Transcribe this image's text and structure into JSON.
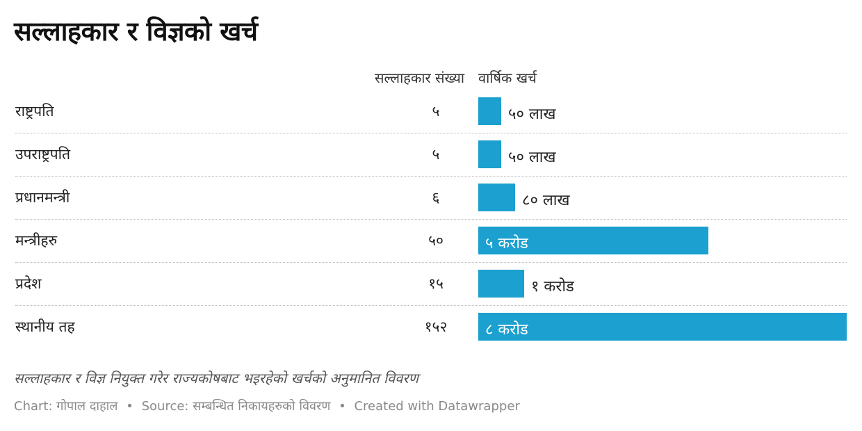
{
  "title": "सल्लाहकार र विज्ञको खर्च",
  "columns": {
    "count_header": "सल्लाहकार संख्या",
    "cost_header": "वार्षिक खर्च"
  },
  "chart_data": {
    "type": "bar",
    "title": "सल्लाहकार र विज्ञको खर्च",
    "categories": [
      "राष्ट्रपति",
      "उपराष्ट्रपति",
      "प्रधानमन्त्री",
      "मन्त्रीहरु",
      "प्रदेश",
      "स्थानीय तह"
    ],
    "advisor_counts": [
      "५",
      "५",
      "६",
      "५०",
      "१५",
      "१५२"
    ],
    "cost_labels": [
      "५० लाख",
      "५० लाख",
      "८० लाख",
      "५ करोड",
      "१ करोड",
      "८ करोड"
    ],
    "values": [
      50,
      50,
      80,
      500,
      100,
      800
    ],
    "unit": "लाख",
    "bar_color": "#1ba0cf",
    "rows": [
      {
        "label": "राष्ट्रपति",
        "count": "५",
        "value": 50,
        "cost_label": "५० लाख"
      },
      {
        "label": "उपराष्ट्रपति",
        "count": "५",
        "value": 50,
        "cost_label": "५० लाख"
      },
      {
        "label": "प्रधानमन्त्री",
        "count": "६",
        "value": 80,
        "cost_label": "८० लाख"
      },
      {
        "label": "मन्त्रीहरु",
        "count": "५०",
        "value": 500,
        "cost_label": "५ करोड"
      },
      {
        "label": "प्रदेश",
        "count": "१५",
        "value": 100,
        "cost_label": "१ करोड"
      },
      {
        "label": "स्थानीय तह",
        "count": "१५२",
        "value": 800,
        "cost_label": "८ करोड"
      }
    ]
  },
  "description": "सल्लाहकार र विज्ञ नियुक्त गरेर राज्यकोषबाट भइरहेको खर्चको अनुमानित विवरण",
  "footer": {
    "chart_credit": "Chart: गोपाल दाहाल",
    "source": "Source: सम्बन्धित निकायहरुको विवरण",
    "created": "Created with Datawrapper",
    "separator": "•"
  }
}
